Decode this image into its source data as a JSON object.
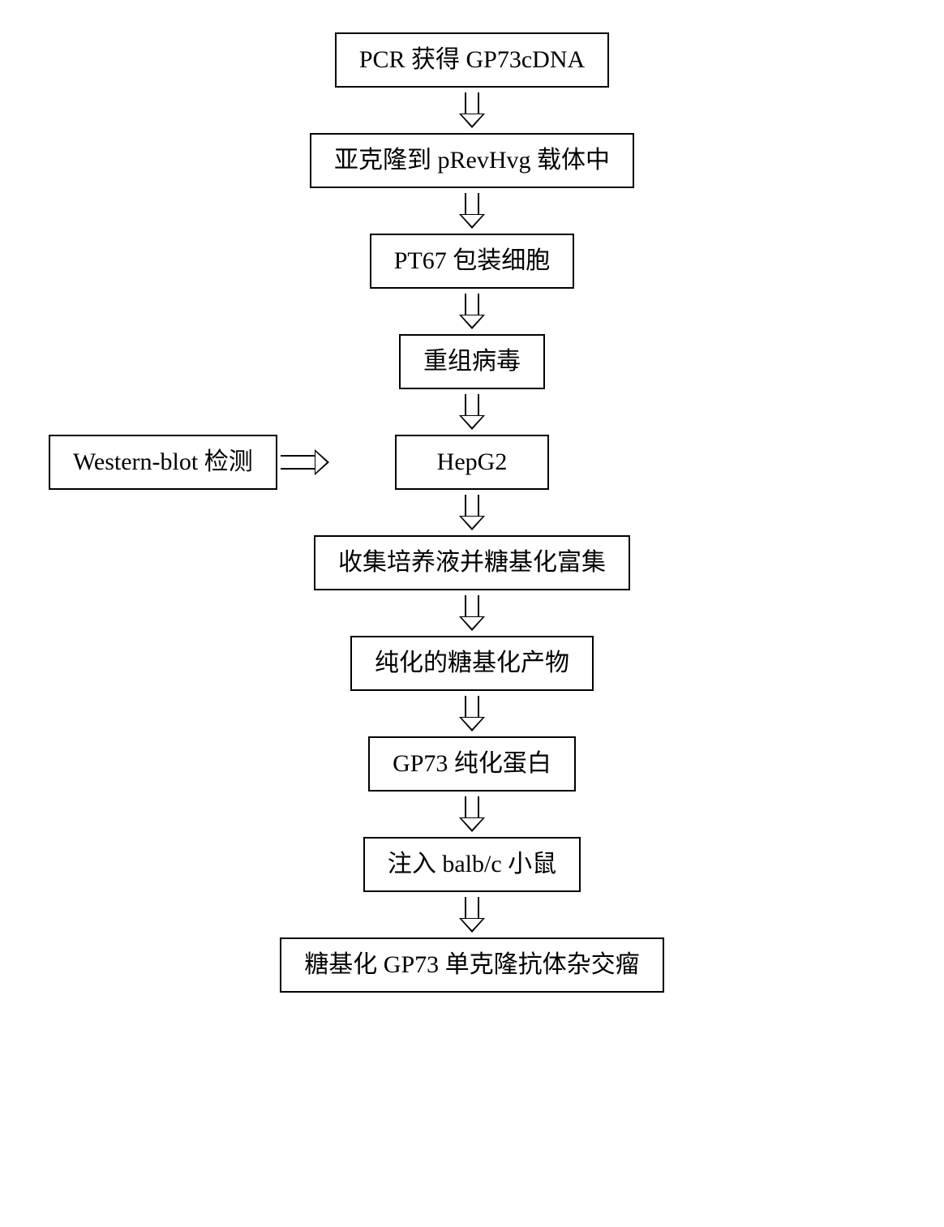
{
  "flow": {
    "type": "flowchart",
    "direction": "vertical",
    "node_border_color": "#000000",
    "node_background": "#ffffff",
    "font_family": "SimSun / Times New Roman",
    "font_size_pt": 22,
    "arrow_style": "hollow-block",
    "nodes": {
      "n1": "PCR 获得 GP73cDNA",
      "n2": "亚克隆到 pRevHvg 载体中",
      "n3": "PT67 包装细胞",
      "n4": "重组病毒",
      "n5": "HepG2",
      "n6": "收集培养液并糖基化富集",
      "n7": "纯化的糖基化产物",
      "n8": "GP73 纯化蛋白",
      "n9": "注入 balb/c 小鼠",
      "n10": "糖基化 GP73 单克隆抗体杂交瘤",
      "side": "Western-blot 检测"
    },
    "edges": [
      {
        "from": "n1",
        "to": "n2"
      },
      {
        "from": "n2",
        "to": "n3"
      },
      {
        "from": "n3",
        "to": "n4"
      },
      {
        "from": "n4",
        "to": "n5"
      },
      {
        "from": "side",
        "to": "n5",
        "direction": "right"
      },
      {
        "from": "n5",
        "to": "n6"
      },
      {
        "from": "n6",
        "to": "n7"
      },
      {
        "from": "n7",
        "to": "n8"
      },
      {
        "from": "n8",
        "to": "n9"
      },
      {
        "from": "n9",
        "to": "n10"
      }
    ]
  }
}
